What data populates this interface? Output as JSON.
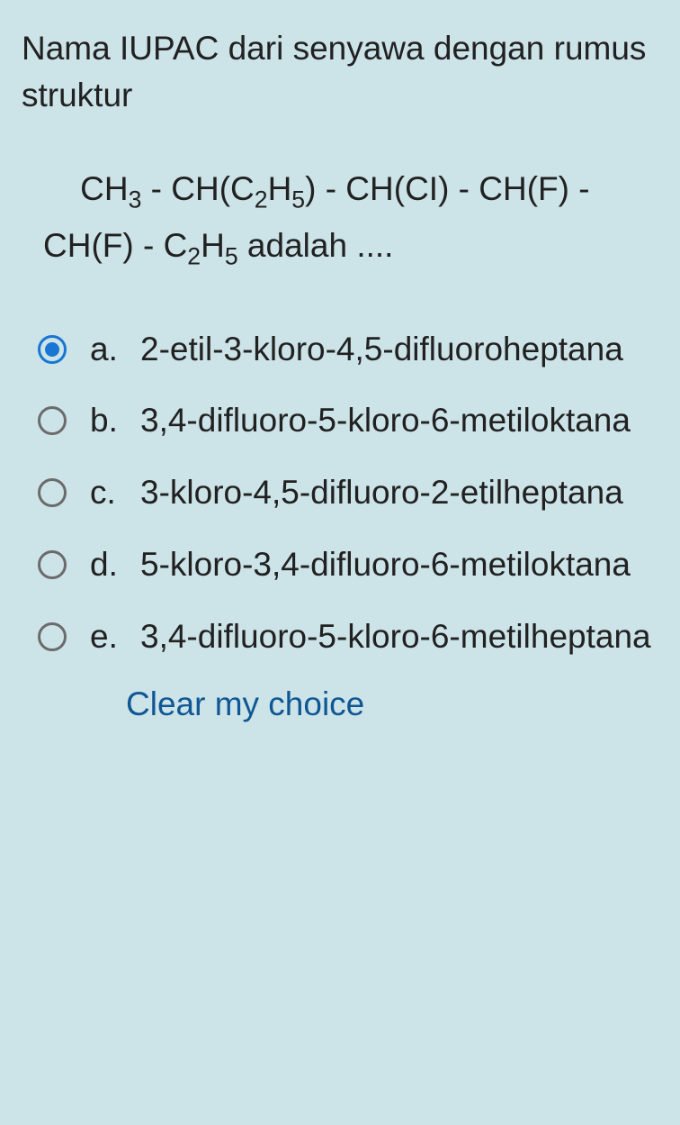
{
  "question": {
    "prompt": "Nama IUPAC dari senyawa dengan rumus struktur",
    "formula_html": "CH<sub>3</sub> - CH(C<sub>2</sub>H<sub>5</sub>) - CH(CI) - CH(F) - CH(F) - C<sub>2</sub>H<sub>5</sub> adalah ....",
    "formula_indent_first": "&nbsp;&nbsp;&nbsp;&nbsp;CH<sub>3</sub> - CH(C<sub>2</sub>H<sub>5</sub>) - CH(CI) - CH(F) -",
    "formula_line2": "CH(F) - C<sub>2</sub>H<sub>5</sub> adalah ...."
  },
  "options": [
    {
      "letter": "a.",
      "text": "2-etil-3-kloro-4,5-difluoroheptana",
      "selected": true
    },
    {
      "letter": "b.",
      "text": "3,4-difluoro-5-kloro-6-metiloktana",
      "selected": false
    },
    {
      "letter": "c.",
      "text": "3-kloro-4,5-difluoro-2-etilheptana",
      "selected": false
    },
    {
      "letter": "d.",
      "text": "5-kloro-3,4-difluoro-6-metiloktana",
      "selected": false
    },
    {
      "letter": "e.",
      "text": "3,4-difluoro-5-kloro-6-metilheptana",
      "selected": false
    }
  ],
  "clear_choice": "Clear my choice",
  "colors": {
    "background": "#cce3e8",
    "text": "#212121",
    "radio_border": "#6b6b6b",
    "radio_selected": "#1976d2",
    "link": "#0f5794"
  }
}
